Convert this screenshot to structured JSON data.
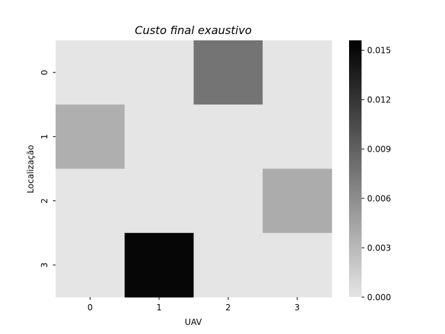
{
  "chart_data": {
    "type": "heatmap",
    "title": "Custo final exaustivo",
    "xlabel": "UAV",
    "ylabel": "Localização",
    "x_categories": [
      "0",
      "1",
      "2",
      "3"
    ],
    "y_categories": [
      "0",
      "1",
      "2",
      "3"
    ],
    "values": [
      [
        0.0,
        0.0,
        0.0077,
        0.0
      ],
      [
        0.0037,
        0.0,
        0.0,
        0.0
      ],
      [
        0.0,
        0.0,
        0.0,
        0.0039
      ],
      [
        0.0,
        0.0152,
        0.0,
        0.0
      ]
    ],
    "colorbar": {
      "range": [
        0.0,
        0.0156
      ],
      "ticks": [
        "0.000",
        "0.003",
        "0.006",
        "0.009",
        "0.012",
        "0.015"
      ],
      "tick_values": [
        0.0,
        0.003,
        0.006,
        0.009,
        0.012,
        0.015
      ],
      "colormap": "light gray to black"
    },
    "colors": {
      "low": "#e5e5e5",
      "high": "#000000"
    },
    "grid": false
  }
}
